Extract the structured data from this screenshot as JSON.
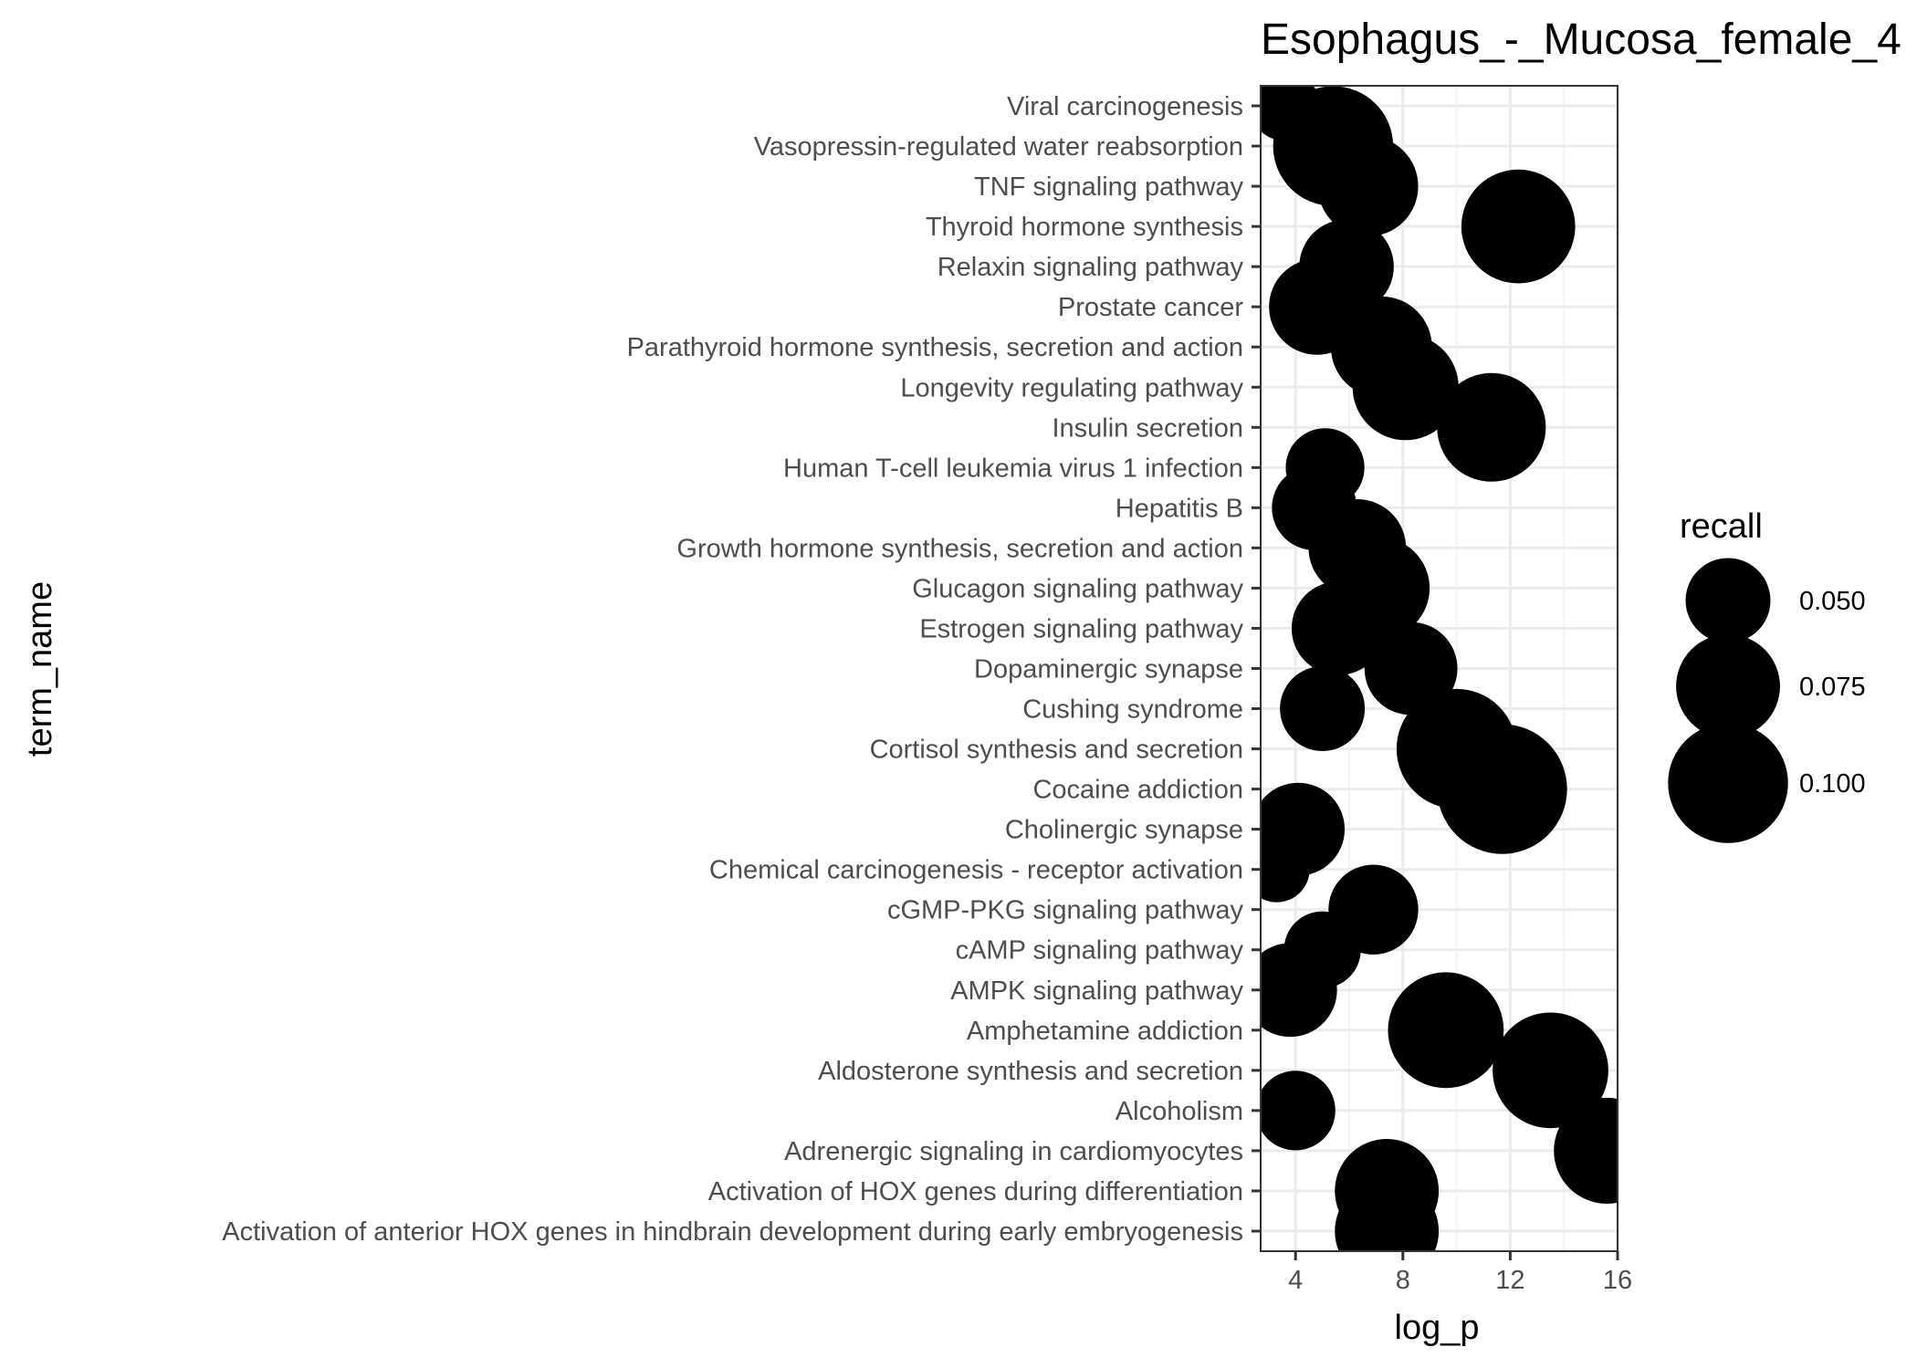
{
  "chart_data": {
    "type": "scatter",
    "title": "Esophagus_-_Mucosa_female_4",
    "xlabel": "log_p",
    "ylabel": "term_name",
    "xlim": [
      2.7,
      16.0
    ],
    "xticks": [
      4,
      8,
      12,
      16
    ],
    "grid": true,
    "legend": {
      "title": "recall",
      "placement": "right",
      "entries": [
        {
          "label": "0.050",
          "value": 0.05
        },
        {
          "label": "0.075",
          "value": 0.075
        },
        {
          "label": "0.100",
          "value": 0.1
        }
      ]
    },
    "points": [
      {
        "term": "Viral carcinogenesis",
        "log_p": 3.6,
        "recall": 0.034
      },
      {
        "term": "Vasopressin-regulated water reabsorption",
        "log_p": 5.4,
        "recall": 0.1
      },
      {
        "term": "TNF signaling pathway",
        "log_p": 6.7,
        "recall": 0.07
      },
      {
        "term": "Thyroid hormone synthesis",
        "log_p": 12.3,
        "recall": 0.09
      },
      {
        "term": "Relaxin signaling pathway",
        "log_p": 5.9,
        "recall": 0.062
      },
      {
        "term": "Prostate cancer",
        "log_p": 4.8,
        "recall": 0.064
      },
      {
        "term": "Parathyroid hormone synthesis, secretion and action",
        "log_p": 7.2,
        "recall": 0.071
      },
      {
        "term": "Longevity regulating pathway",
        "log_p": 8.1,
        "recall": 0.078
      },
      {
        "term": "Insulin secretion",
        "log_p": 11.3,
        "recall": 0.082
      },
      {
        "term": "Human T-cell leukemia virus 1 infection",
        "log_p": 5.1,
        "recall": 0.043
      },
      {
        "term": "Hepatitis B",
        "log_p": 4.7,
        "recall": 0.05
      },
      {
        "term": "Growth hormone synthesis, secretion and action",
        "log_p": 6.3,
        "recall": 0.066
      },
      {
        "term": "Glucagon signaling pathway",
        "log_p": 7.1,
        "recall": 0.072
      },
      {
        "term": "Estrogen signaling pathway",
        "log_p": 5.6,
        "recall": 0.061
      },
      {
        "term": "Dopaminergic synapse",
        "log_p": 8.3,
        "recall": 0.06
      },
      {
        "term": "Cushing syndrome",
        "log_p": 5.0,
        "recall": 0.05
      },
      {
        "term": "Cortisol synthesis and secretion",
        "log_p": 10.0,
        "recall": 0.1
      },
      {
        "term": "Cocaine addiction",
        "log_p": 11.7,
        "recall": 0.117
      },
      {
        "term": "Cholinergic synapse",
        "log_p": 4.1,
        "recall": 0.06
      },
      {
        "term": "Chemical carcinogenesis - receptor activation",
        "log_p": 3.3,
        "recall": 0.03
      },
      {
        "term": "cGMP-PKG signaling pathway",
        "log_p": 6.9,
        "recall": 0.056
      },
      {
        "term": "cAMP signaling pathway",
        "log_p": 5.0,
        "recall": 0.041
      },
      {
        "term": "AMPK signaling pathway",
        "log_p": 3.8,
        "recall": 0.061
      },
      {
        "term": "Amphetamine addiction",
        "log_p": 9.6,
        "recall": 0.093
      },
      {
        "term": "Aldosterone synthesis and secretion",
        "log_p": 13.5,
        "recall": 0.093
      },
      {
        "term": "Alcoholism",
        "log_p": 4.0,
        "recall": 0.044
      },
      {
        "term": "Adrenergic signaling in cardiomyocytes",
        "log_p": 15.6,
        "recall": 0.078
      },
      {
        "term": "Activation of HOX genes during differentiation",
        "log_p": 7.4,
        "recall": 0.075
      },
      {
        "term": "Activation of anterior HOX genes in hindbrain development during early embryogenesis",
        "log_p": 7.4,
        "recall": 0.075
      }
    ]
  }
}
